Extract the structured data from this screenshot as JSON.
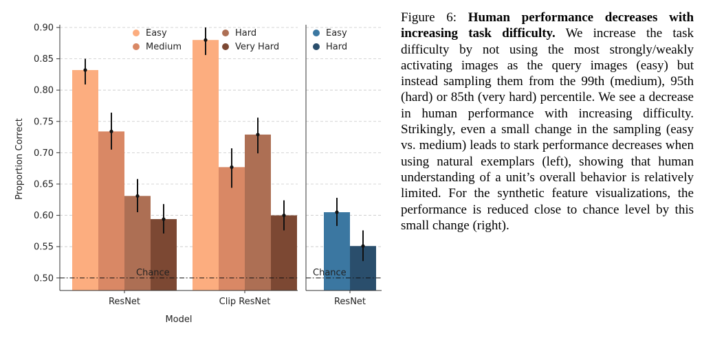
{
  "chart_data": [
    {
      "type": "bar",
      "categories": [
        "ResNet",
        "Clip ResNet"
      ],
      "series": [
        {
          "name": "Easy",
          "color": "#fcad7f",
          "values": [
            0.832,
            0.88
          ],
          "err_low": [
            0.809,
            0.856
          ],
          "err_high": [
            0.85,
            0.9
          ]
        },
        {
          "name": "Medium",
          "color": "#d98865",
          "values": [
            0.734,
            0.677
          ],
          "err_low": [
            0.705,
            0.644
          ],
          "err_high": [
            0.764,
            0.707
          ]
        },
        {
          "name": "Hard",
          "color": "#ad6f54",
          "values": [
            0.631,
            0.729
          ],
          "err_low": [
            0.605,
            0.699
          ],
          "err_high": [
            0.658,
            0.756
          ]
        },
        {
          "name": "Very Hard",
          "color": "#7c4833",
          "values": [
            0.594,
            0.6
          ],
          "err_low": [
            0.571,
            0.576
          ],
          "err_high": [
            0.618,
            0.624
          ]
        }
      ],
      "xlabel": "Model",
      "ylabel": "Proportion Correct",
      "ylim": [
        0.48,
        0.9
      ],
      "yticks": [
        "0.50",
        "0.55",
        "0.60",
        "0.65",
        "0.70",
        "0.75",
        "0.80",
        "0.85",
        "0.90"
      ],
      "chance_level": 0.5,
      "chance_label": "Chance",
      "legend_placement": "top",
      "grid": "y-dashed"
    },
    {
      "type": "bar",
      "categories": [
        "ResNet"
      ],
      "series": [
        {
          "name": "Easy",
          "color": "#3b77a1",
          "values": [
            0.605
          ],
          "err_low": [
            0.583
          ],
          "err_high": [
            0.628
          ]
        },
        {
          "name": "Hard",
          "color": "#2a4e6c",
          "values": [
            0.551
          ],
          "err_low": [
            0.527
          ],
          "err_high": [
            0.576
          ]
        }
      ],
      "ylim": [
        0.48,
        0.9
      ],
      "chance_level": 0.5,
      "chance_label": "Chance",
      "legend_placement": "top",
      "grid": "y-dashed"
    }
  ],
  "caption": {
    "label": "Figure 6:",
    "bold": "Human performance decreases with increasing task difficulty.",
    "body": "We increase the task difficulty by not using the most strongly/weakly activating images as the query images (easy) but instead sampling them from the 99th (medium), 95th (hard) or 85th (very hard) percentile. We see a decrease in human performance with increasing difficulty. Strikingly, even a small change in the sampling (easy vs. medium) leads to stark performance decreases when using natural exemplars (left), showing that human understanding of a unit’s overall behavior is relatively limited. For the synthetic feature visualizations, the performance is reduced close to chance level by this small change (right)."
  }
}
